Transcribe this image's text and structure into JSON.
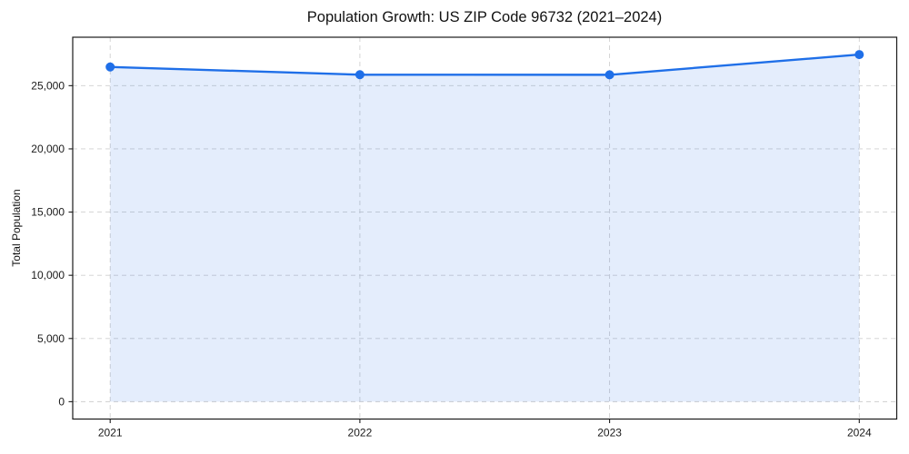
{
  "chart": {
    "title": "Population Growth: US ZIP Code 96732 (2021–2024)",
    "ylabel": "Total Population",
    "xlabel": ""
  },
  "chart_data": {
    "type": "line",
    "title": "Population Growth: US ZIP Code 96732 (2021–2024)",
    "xlabel": "",
    "ylabel": "Total Population",
    "x": [
      2021,
      2022,
      2023,
      2024
    ],
    "x_tick_labels": [
      "2021",
      "2022",
      "2023",
      "2024"
    ],
    "series": [
      {
        "name": "Total Population",
        "values": [
          26480,
          25870,
          25860,
          27460
        ]
      }
    ],
    "y_ticks": [
      0,
      5000,
      10000,
      15000,
      20000,
      25000
    ],
    "y_tick_labels": [
      "0",
      "5,000",
      "10,000",
      "15,000",
      "20,000",
      "25,000"
    ],
    "ylim": [
      -1373,
      28833
    ],
    "grid": "both-dashed",
    "legend_position": "none",
    "marker": "circle",
    "area_fill": true,
    "colors": {
      "line": "#1f6fe8",
      "marker": "#1f6fe8",
      "fill": "rgba(31,111,232,0.12)",
      "grid": "#cfcfcf",
      "spine": "#1a1a1a",
      "text": "#1a1a1a",
      "background": "#ffffff"
    }
  }
}
